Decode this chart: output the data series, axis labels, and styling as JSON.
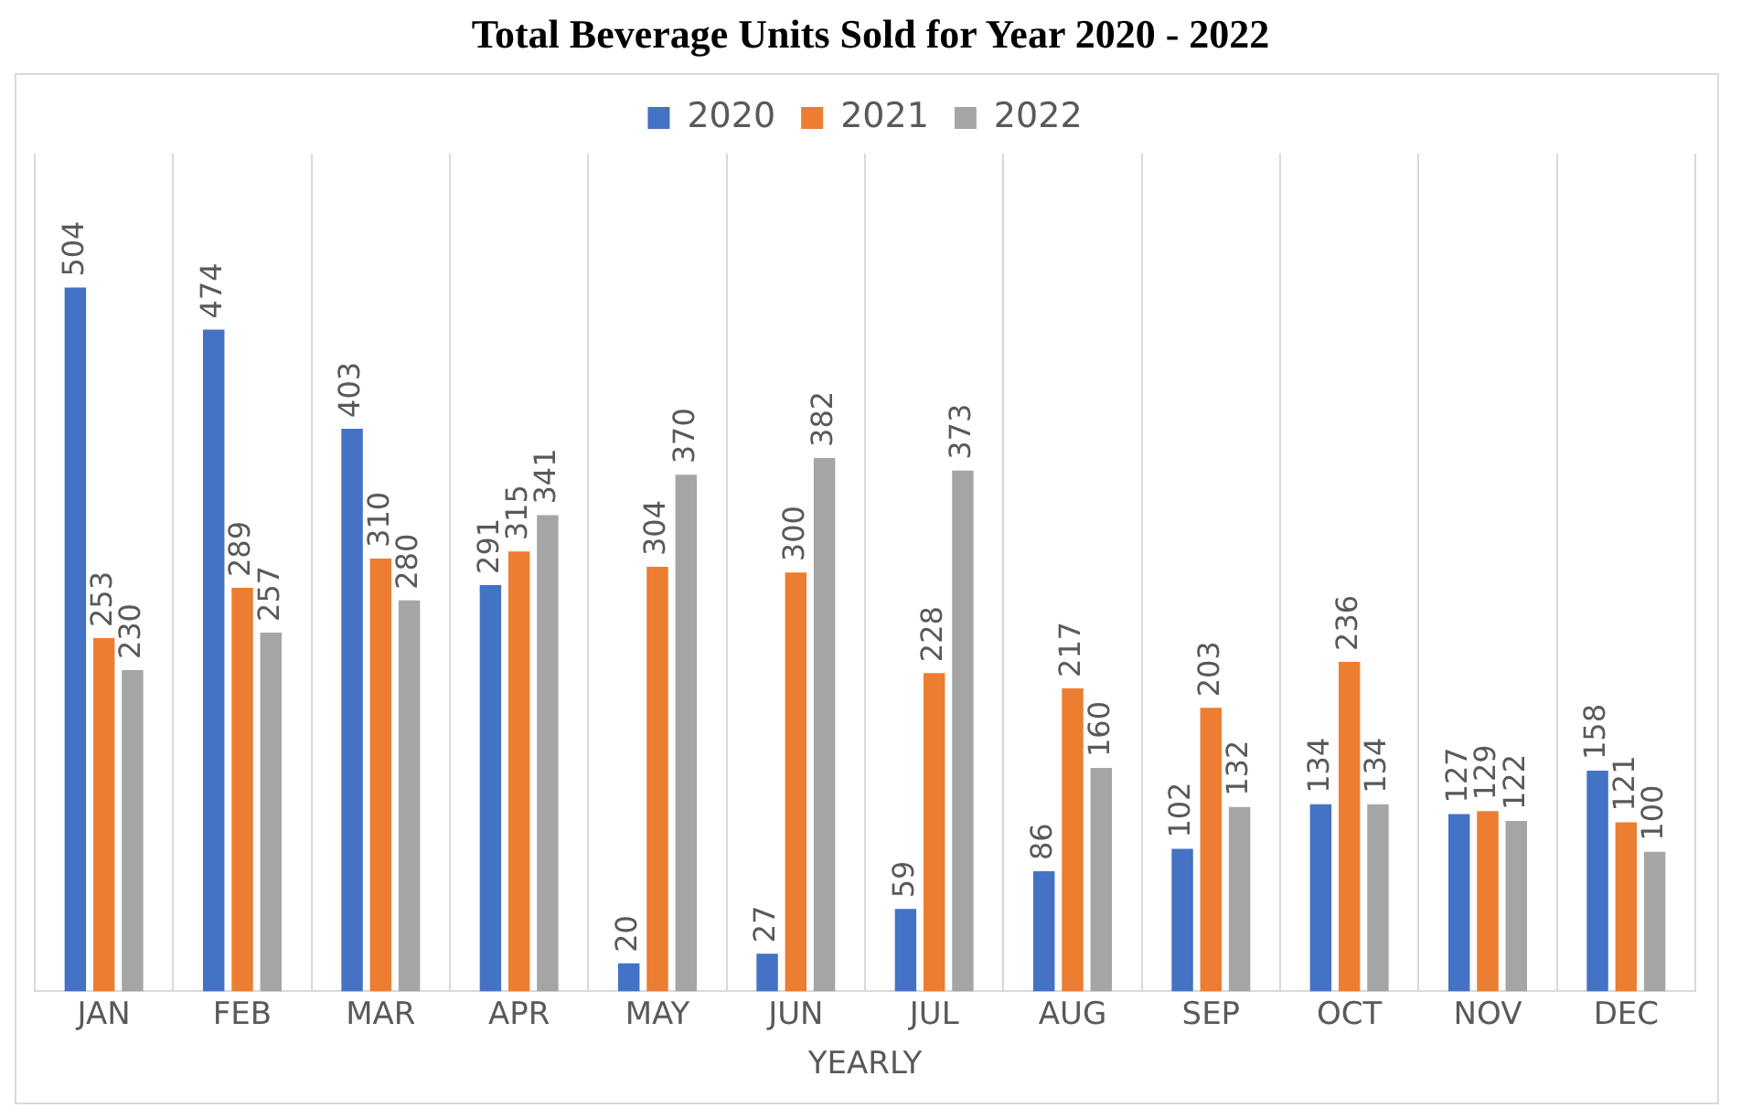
{
  "chart_data": {
    "type": "bar",
    "title": "Total Beverage Units Sold for Year 2020 - 2022",
    "xlabel": "YEARLY",
    "categories": [
      "JAN",
      "FEB",
      "MAR",
      "APR",
      "MAY",
      "JUN",
      "JUL",
      "AUG",
      "SEP",
      "OCT",
      "NOV",
      "DEC"
    ],
    "series": [
      {
        "name": "2020",
        "color": "#4472c4",
        "values": [
          504,
          474,
          403,
          291,
          20,
          27,
          59,
          86,
          102,
          134,
          127,
          158
        ]
      },
      {
        "name": "2021",
        "color": "#ed7d31",
        "values": [
          253,
          289,
          310,
          315,
          304,
          300,
          228,
          217,
          203,
          236,
          129,
          121
        ]
      },
      {
        "name": "2022",
        "color": "#a5a5a5",
        "values": [
          230,
          257,
          280,
          341,
          370,
          382,
          373,
          160,
          132,
          134,
          122,
          100
        ]
      }
    ],
    "data_labels": true,
    "grid": "x",
    "legend": "top",
    "tick_labels": "x"
  }
}
